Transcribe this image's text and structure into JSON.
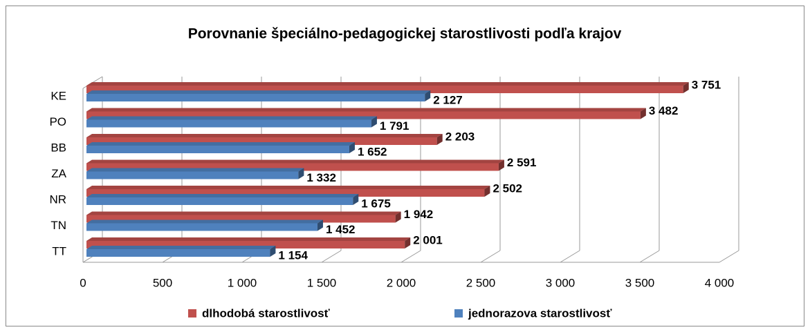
{
  "chart_data": {
    "type": "bar",
    "orientation": "horizontal",
    "title": "Porovnanie špeciálno-pedagogickej starostlivosti podľa krajov",
    "categories": [
      "KE",
      "PO",
      "BB",
      "ZA",
      "NR",
      "TN",
      "TT"
    ],
    "series": [
      {
        "name": "dlhodobá starostlivosť",
        "color": "#c0504d",
        "values": [
          3751,
          3482,
          2203,
          2591,
          2502,
          1942,
          2001
        ],
        "value_labels": [
          "3 751",
          "3 482",
          "2 203",
          "2 591",
          "2 502",
          "1 942",
          "2 001"
        ]
      },
      {
        "name": "jednorazova starostlivosť",
        "color": "#4f81bd",
        "values": [
          2127,
          1791,
          1652,
          1332,
          1675,
          1452,
          1154
        ],
        "value_labels": [
          "2 127",
          "1 791",
          "1 652",
          "1 332",
          "1 675",
          "1 452",
          "1 154"
        ]
      }
    ],
    "xlim": [
      0,
      4000
    ],
    "xticks": [
      0,
      500,
      {
        "value": 1000,
        "label": "1 000"
      },
      {
        "value": 1500,
        "label": "1 500"
      },
      {
        "value": 2000,
        "label": "2 000"
      },
      {
        "value": 2500,
        "label": "2 500"
      },
      {
        "value": 3000,
        "label": "3 000"
      },
      {
        "value": 3500,
        "label": "3 500"
      },
      {
        "value": 4000,
        "label": "4 000"
      }
    ],
    "grid": true,
    "legend": "bottom"
  }
}
